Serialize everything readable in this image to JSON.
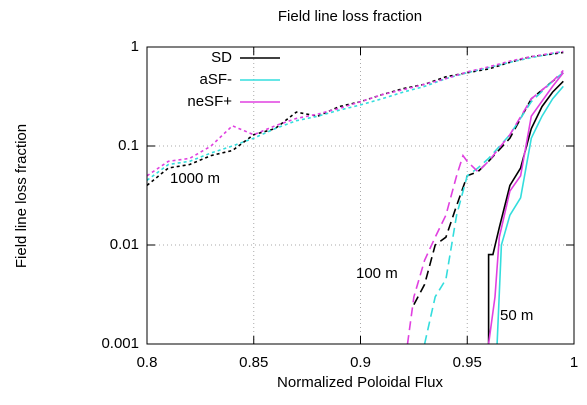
{
  "chart_data": {
    "type": "line",
    "title": "Field line loss fraction",
    "xlabel": "Normalized Poloidal Flux",
    "ylabel": "Field line loss fraction",
    "xlim": [
      0.8,
      1
    ],
    "xticks": [
      0.8,
      0.85,
      0.9,
      0.95,
      1
    ],
    "ylim": [
      0.001,
      1
    ],
    "yticks": [
      1,
      0.1,
      0.01,
      0.001
    ],
    "yscale": "log",
    "grid": true,
    "legend": {
      "position": "top-left",
      "entries": [
        {
          "name": "SD",
          "color": "#000000"
        },
        {
          "name": "aSF-",
          "color": "#33dddd"
        },
        {
          "name": "neSF+",
          "color": "#e040e0"
        }
      ]
    },
    "groups": [
      {
        "label": "1000 m",
        "dash": "dotted",
        "series": [
          {
            "color": "#000000",
            "x": [
              0.8,
              0.81,
              0.82,
              0.83,
              0.84,
              0.85,
              0.86,
              0.87,
              0.88,
              0.89,
              0.9,
              0.91,
              0.92,
              0.93,
              0.94,
              0.95,
              0.96,
              0.97,
              0.98,
              0.99,
              0.995
            ],
            "values": [
              0.04,
              0.06,
              0.065,
              0.08,
              0.09,
              0.13,
              0.15,
              0.22,
              0.2,
              0.25,
              0.28,
              0.33,
              0.38,
              0.42,
              0.5,
              0.55,
              0.6,
              0.7,
              0.8,
              0.85,
              0.88
            ]
          },
          {
            "color": "#33dddd",
            "x": [
              0.8,
              0.81,
              0.82,
              0.83,
              0.84,
              0.85,
              0.86,
              0.87,
              0.88,
              0.89,
              0.9,
              0.91,
              0.92,
              0.93,
              0.94,
              0.95,
              0.96,
              0.97,
              0.98,
              0.99,
              0.995
            ],
            "values": [
              0.045,
              0.065,
              0.07,
              0.085,
              0.1,
              0.12,
              0.15,
              0.18,
              0.2,
              0.23,
              0.26,
              0.3,
              0.35,
              0.4,
              0.48,
              0.55,
              0.62,
              0.7,
              0.78,
              0.86,
              0.9
            ]
          },
          {
            "color": "#e040e0",
            "x": [
              0.8,
              0.81,
              0.82,
              0.83,
              0.84,
              0.85,
              0.86,
              0.87,
              0.88,
              0.89,
              0.9,
              0.91,
              0.92,
              0.93,
              0.94,
              0.95,
              0.96,
              0.97,
              0.98,
              0.99,
              0.995
            ],
            "values": [
              0.05,
              0.07,
              0.075,
              0.1,
              0.16,
              0.13,
              0.16,
              0.19,
              0.21,
              0.24,
              0.28,
              0.33,
              0.37,
              0.42,
              0.48,
              0.56,
              0.63,
              0.72,
              0.8,
              0.87,
              0.9
            ]
          }
        ]
      },
      {
        "label": "100 m",
        "dash": "dashed",
        "series": [
          {
            "color": "#000000",
            "x": [
              0.925,
              0.93,
              0.935,
              0.94,
              0.945,
              0.95,
              0.955,
              0.96,
              0.97,
              0.98,
              0.99,
              0.995
            ],
            "values": [
              0.0025,
              0.004,
              0.01,
              0.012,
              0.025,
              0.05,
              0.055,
              0.07,
              0.12,
              0.3,
              0.45,
              0.55
            ]
          },
          {
            "color": "#33dddd",
            "x": [
              0.93,
              0.935,
              0.94,
              0.945,
              0.95,
              0.955,
              0.96,
              0.97,
              0.98,
              0.99,
              0.995
            ],
            "values": [
              0.001,
              0.003,
              0.0045,
              0.02,
              0.05,
              0.06,
              0.075,
              0.13,
              0.28,
              0.45,
              0.55
            ]
          },
          {
            "color": "#e040e0",
            "x": [
              0.922,
              0.925,
              0.93,
              0.935,
              0.94,
              0.945,
              0.948,
              0.95,
              0.955,
              0.96,
              0.97,
              0.98,
              0.99,
              0.995
            ],
            "values": [
              0.001,
              0.003,
              0.007,
              0.012,
              0.02,
              0.05,
              0.08,
              0.07,
              0.055,
              0.07,
              0.13,
              0.3,
              0.45,
              0.58
            ]
          }
        ]
      },
      {
        "label": "50 m",
        "dash": "solid",
        "series": [
          {
            "color": "#000000",
            "x": [
              0.96,
              0.96,
              0.962,
              0.965,
              0.97,
              0.975,
              0.98,
              0.985,
              0.99,
              0.995
            ],
            "values": [
              0.001,
              0.008,
              0.008,
              0.015,
              0.04,
              0.06,
              0.15,
              0.25,
              0.35,
              0.45
            ]
          },
          {
            "color": "#33dddd",
            "x": [
              0.964,
              0.966,
              0.97,
              0.975,
              0.98,
              0.985,
              0.99,
              0.995
            ],
            "values": [
              0.001,
              0.01,
              0.02,
              0.03,
              0.12,
              0.2,
              0.3,
              0.4
            ]
          },
          {
            "color": "#e040e0",
            "x": [
              0.96,
              0.963,
              0.965,
              0.97,
              0.975,
              0.98,
              0.99,
              0.995
            ],
            "values": [
              0.001,
              0.003,
              0.012,
              0.035,
              0.05,
              0.2,
              0.4,
              0.55
            ]
          }
        ]
      }
    ]
  }
}
